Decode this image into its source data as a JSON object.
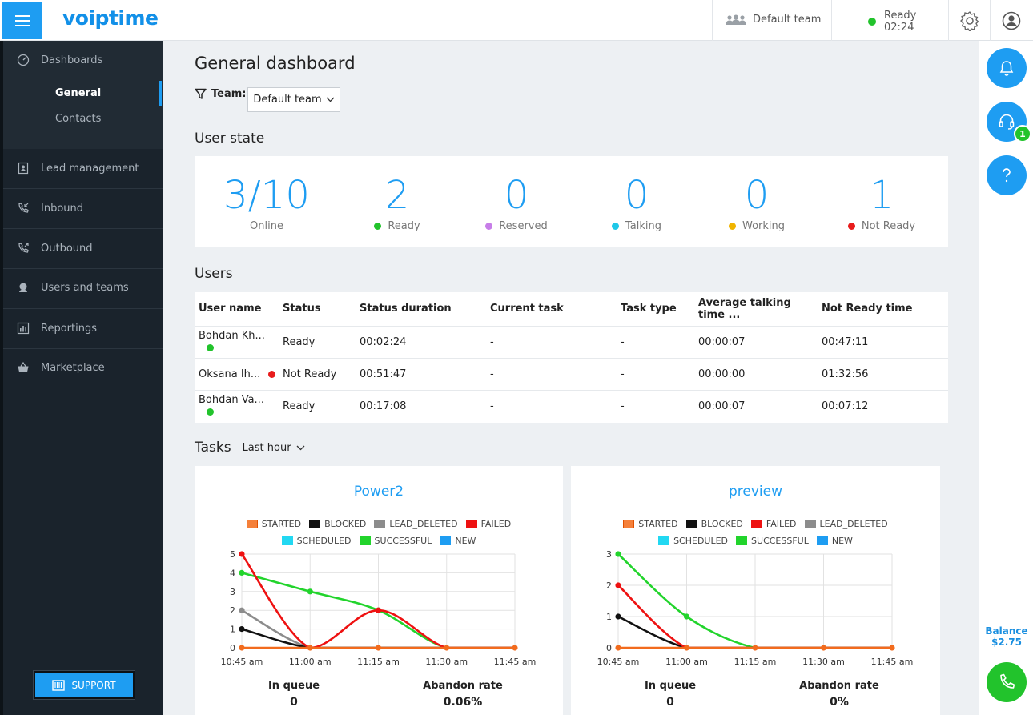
{
  "app": {
    "logo": "voiptime"
  },
  "topbar": {
    "team": "Default team",
    "status_label": "Ready",
    "status_time": "02:24"
  },
  "sidebar": {
    "dashboards": "Dashboards",
    "sub_general": "General",
    "sub_contacts": "Contacts",
    "items": [
      "Lead management",
      "Inbound",
      "Outbound",
      "Users and teams",
      "Reportings",
      "Marketplace"
    ],
    "support": "SUPPORT"
  },
  "rail": {
    "badge": "1",
    "balance_label": "Balance",
    "balance_value": "$2.75"
  },
  "main": {
    "title": "General dashboard",
    "team_filter_label": "Team:",
    "team_filter_value": "Default team",
    "user_state_heading": "User state",
    "user_state": [
      {
        "value": "3/10",
        "label": "Online",
        "color": ""
      },
      {
        "value": "2",
        "label": "Ready",
        "color": "#22c32c"
      },
      {
        "value": "0",
        "label": "Reserved",
        "color": "#c77ee8"
      },
      {
        "value": "0",
        "label": "Talking",
        "color": "#1fc8e8"
      },
      {
        "value": "0",
        "label": "Working",
        "color": "#f0b400"
      },
      {
        "value": "1",
        "label": "Not Ready",
        "color": "#e81c1c"
      }
    ],
    "users_heading": "Users",
    "users_columns": [
      "User name",
      "Status",
      "Status duration",
      "Current task",
      "Task type",
      "Average talking time ...",
      "Not Ready time"
    ],
    "users_rows": [
      {
        "name": "Bohdan Kh...",
        "status": "Ready",
        "status_color": "#22c32c",
        "duration": "00:02:24",
        "task": "-",
        "type": "-",
        "avg": "00:00:07",
        "notready": "00:47:11"
      },
      {
        "name": "Oksana Ih...",
        "status": "Not Ready",
        "status_color": "#e81c1c",
        "duration": "00:51:47",
        "task": "-",
        "type": "-",
        "avg": "00:00:00",
        "notready": "01:32:56"
      },
      {
        "name": "Bohdan Va...",
        "status": "Ready",
        "status_color": "#22c32c",
        "duration": "00:17:08",
        "task": "-",
        "type": "-",
        "avg": "00:00:07",
        "notready": "00:07:12"
      }
    ],
    "tasks_heading": "Tasks",
    "tasks_period": "Last hour"
  },
  "chart_data": [
    {
      "type": "line",
      "title": "Power2",
      "x": [
        "10:45 am",
        "11:00 am",
        "11:15 am",
        "11:30 am",
        "11:45 am"
      ],
      "ylim": [
        0,
        5
      ],
      "yticks": [
        0,
        1,
        2,
        3,
        4,
        5
      ],
      "grid": true,
      "legend_position": "top",
      "legend_rows": [
        [
          "STARTED",
          "BLOCKED",
          "LEAD_DELETED",
          "FAILED"
        ],
        [
          "SCHEDULED",
          "SUCCESSFUL",
          "NEW"
        ]
      ],
      "series": [
        {
          "name": "STARTED",
          "color": "#f26b1d",
          "values": [
            0,
            0,
            0,
            0,
            0
          ]
        },
        {
          "name": "BLOCKED",
          "color": "#111111",
          "values": [
            1,
            0,
            0,
            0,
            0
          ]
        },
        {
          "name": "LEAD_DELETED",
          "color": "#8c8c8c",
          "values": [
            2,
            0,
            0,
            0,
            0
          ]
        },
        {
          "name": "FAILED",
          "color": "#ee1111",
          "values": [
            5,
            0,
            2,
            0,
            0
          ]
        },
        {
          "name": "SCHEDULED",
          "color": "#22d8f2",
          "values": [
            0,
            0,
            0,
            0,
            0
          ]
        },
        {
          "name": "SUCCESSFUL",
          "color": "#22d42c",
          "values": [
            4,
            3,
            2,
            0,
            0
          ]
        },
        {
          "name": "NEW",
          "color": "#1e9df2",
          "values": [
            0,
            0,
            0,
            0,
            0
          ]
        }
      ],
      "draw_order": [
        "SUCCESSFUL",
        "LEAD_DELETED",
        "BLOCKED",
        "FAILED",
        "STARTED"
      ],
      "in_queue_label": "In queue",
      "in_queue": "0",
      "abandon_label": "Abandon rate",
      "abandon": "0.06%"
    },
    {
      "type": "line",
      "title": "preview",
      "x": [
        "10:45 am",
        "11:00 am",
        "11:15 am",
        "11:30 am",
        "11:45 am"
      ],
      "ylim": [
        0,
        3
      ],
      "yticks": [
        0,
        1,
        2,
        3
      ],
      "grid": true,
      "legend_position": "top",
      "legend_rows": [
        [
          "STARTED",
          "BLOCKED",
          "FAILED",
          "LEAD_DELETED"
        ],
        [
          "SCHEDULED",
          "SUCCESSFUL",
          "NEW"
        ]
      ],
      "series": [
        {
          "name": "STARTED",
          "color": "#f26b1d",
          "values": [
            0,
            0,
            0,
            0,
            0
          ]
        },
        {
          "name": "BLOCKED",
          "color": "#111111",
          "values": [
            1,
            0,
            0,
            0,
            0
          ]
        },
        {
          "name": "FAILED",
          "color": "#ee1111",
          "values": [
            2,
            0,
            0,
            0,
            0
          ]
        },
        {
          "name": "LEAD_DELETED",
          "color": "#8c8c8c",
          "values": [
            0,
            0,
            0,
            0,
            0
          ]
        },
        {
          "name": "SCHEDULED",
          "color": "#22d8f2",
          "values": [
            0,
            0,
            0,
            0,
            0
          ]
        },
        {
          "name": "SUCCESSFUL",
          "color": "#22d42c",
          "values": [
            3,
            1,
            0,
            0,
            0
          ]
        },
        {
          "name": "NEW",
          "color": "#1e9df2",
          "values": [
            0,
            0,
            0,
            0,
            0
          ]
        }
      ],
      "draw_order": [
        "SUCCESSFUL",
        "BLOCKED",
        "FAILED",
        "STARTED"
      ],
      "in_queue_label": "In queue",
      "in_queue": "0",
      "abandon_label": "Abandon rate",
      "abandon": "0%"
    }
  ]
}
